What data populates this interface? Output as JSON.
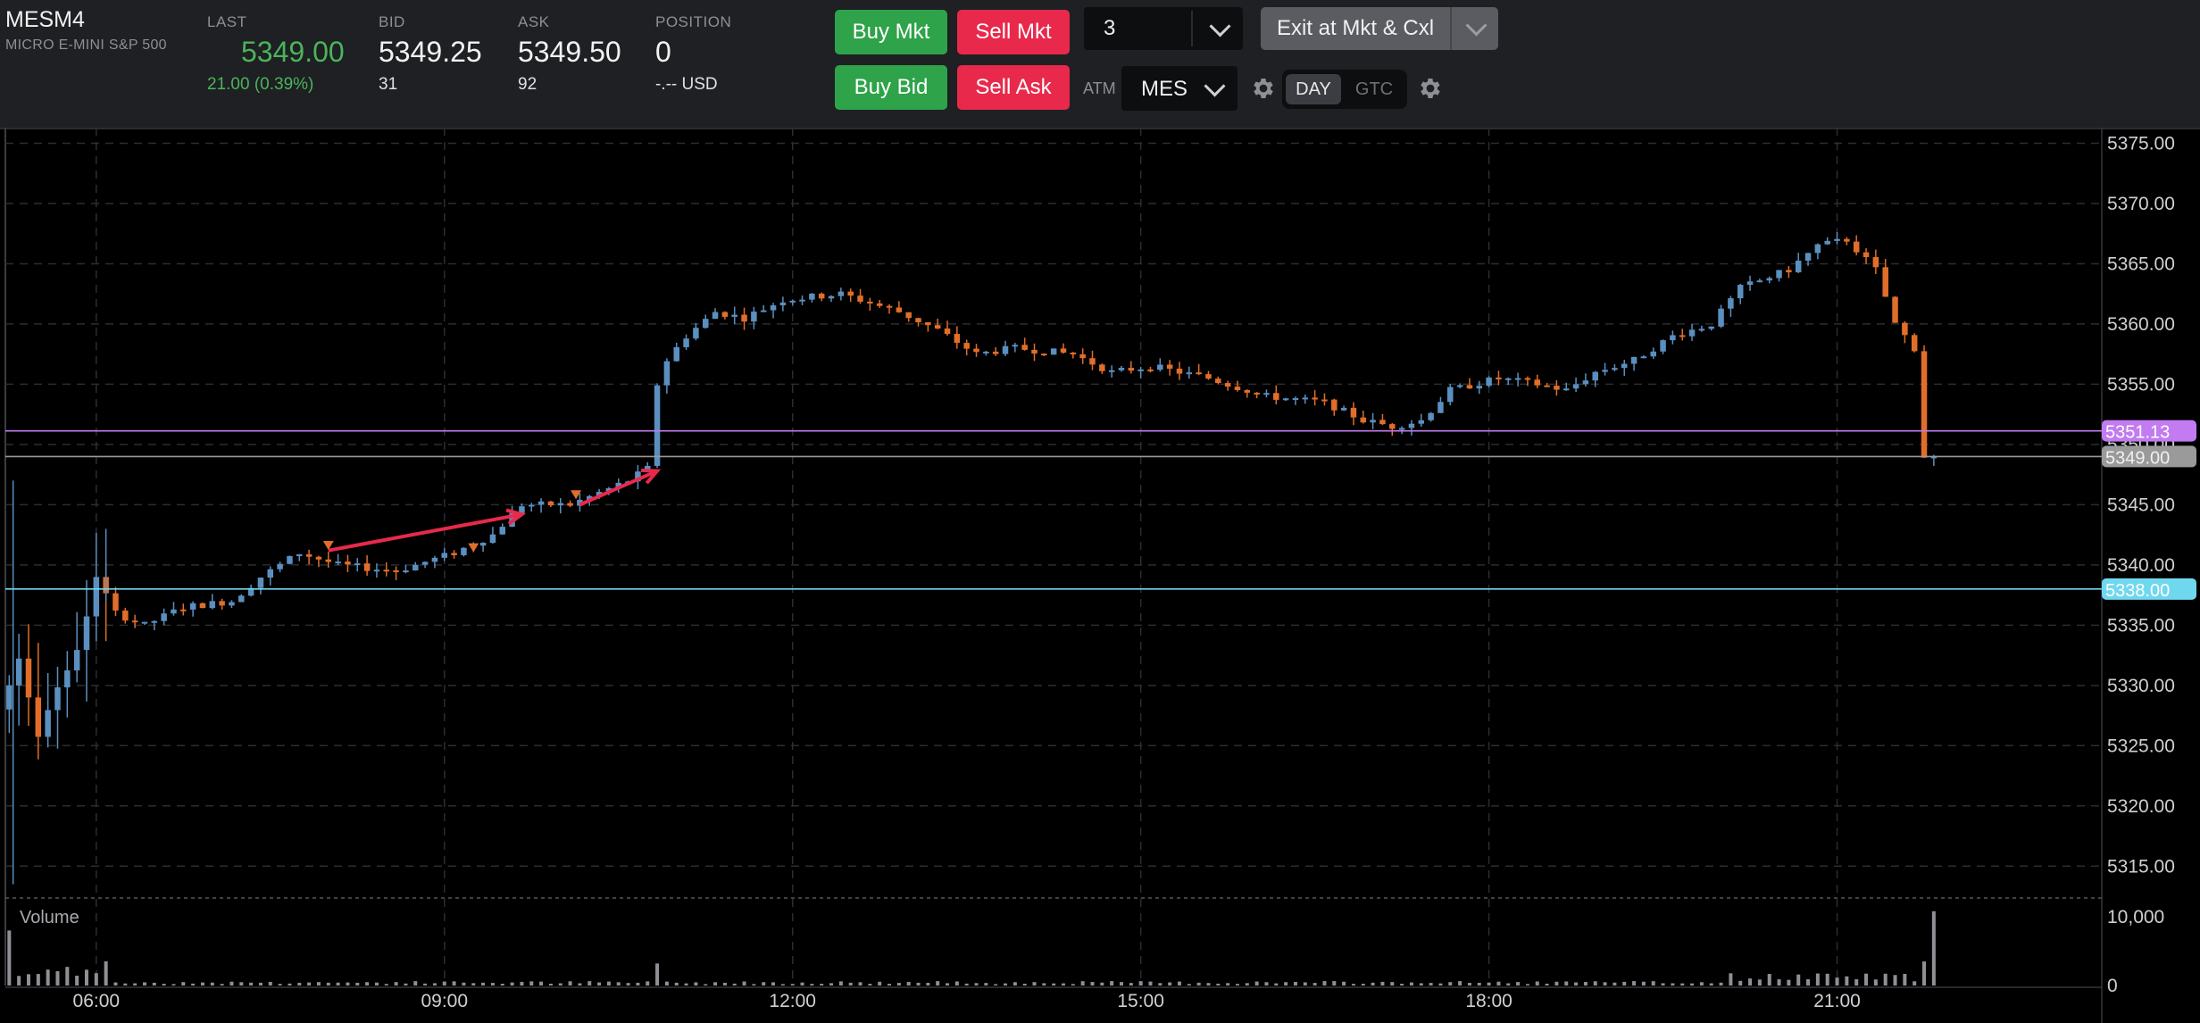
{
  "instrument": {
    "symbol": "MESM4",
    "description": "MICRO E-MINI S&P 500"
  },
  "quote": {
    "last_label": "LAST",
    "last_value": "5349.00",
    "change": "21.00 (0.39%)",
    "bid_label": "BID",
    "bid_value": "5349.25",
    "bid_size": "31",
    "ask_label": "ASK",
    "ask_value": "5349.50",
    "ask_size": "92",
    "position_label": "POSITION",
    "position_value": "0",
    "pnl": "-.-- USD"
  },
  "orders": {
    "buy_mkt": "Buy Mkt",
    "sell_mkt": "Sell Mkt",
    "buy_bid": "Buy Bid",
    "sell_ask": "Sell Ask",
    "quantity": "3",
    "exit": "Exit at Mkt & Cxl",
    "atm_label": "ATM",
    "atm_value": "MES",
    "tif_day": "DAY",
    "tif_gtc": "GTC",
    "tif_selected": "DAY"
  },
  "colors": {
    "up": "#5b8fbf",
    "down": "#e06e2a",
    "last_line": "#9a9a9a",
    "purple_line": "#c27bf0",
    "cyan_line": "#6fd8ee",
    "arrow": "#e8294b"
  },
  "chart_data": {
    "type": "candlestick",
    "price_axis": {
      "ticks": [
        "5375.00",
        "5370.00",
        "5365.00",
        "5360.00",
        "5355.00",
        "5350.00",
        "5345.00",
        "5340.00",
        "5335.00",
        "5330.00",
        "5325.00",
        "5320.00",
        "5315.00"
      ],
      "range": [
        5312.5,
        5376
      ]
    },
    "time_axis": {
      "ticks": [
        "06:00",
        "09:00",
        "12:00",
        "15:00",
        "18:00",
        "21:00"
      ],
      "start": "05:13",
      "end": "23:15"
    },
    "price_lines": [
      {
        "value": 5351.13,
        "label": "5351.13",
        "kind": "purple"
      },
      {
        "value": 5349.0,
        "label": "5349.00",
        "kind": "last"
      },
      {
        "value": 5338.0,
        "label": "5338.00",
        "kind": "cyan"
      }
    ],
    "drawings": [
      {
        "type": "arrow",
        "from": [
          "08:00",
          5341.2
        ],
        "to": [
          "09:40",
          5344.2
        ]
      },
      {
        "type": "arrow",
        "from": [
          "10:10",
          5345.0
        ],
        "to": [
          "10:50",
          5347.8
        ]
      }
    ],
    "markers": [
      {
        "time": "08:00",
        "price": 5341.4,
        "direction": "down"
      },
      {
        "time": "09:15",
        "price": 5341.2,
        "direction": "down"
      },
      {
        "time": "10:08",
        "price": 5345.6,
        "direction": "down"
      }
    ],
    "path_keypoints": [
      [
        "05:15",
        5328
      ],
      [
        "05:25",
        5332
      ],
      [
        "05:35",
        5326
      ],
      [
        "05:45",
        5330
      ],
      [
        "05:55",
        5333
      ],
      [
        "06:05",
        5339
      ],
      [
        "06:15",
        5336
      ],
      [
        "06:30",
        5335
      ],
      [
        "06:50",
        5336.5
      ],
      [
        "07:15",
        5337
      ],
      [
        "07:30",
        5339
      ],
      [
        "07:50",
        5341
      ],
      [
        "08:10",
        5340
      ],
      [
        "08:40",
        5339.5
      ],
      [
        "09:10",
        5341
      ],
      [
        "09:30",
        5342.5
      ],
      [
        "09:45",
        5345
      ],
      [
        "10:10",
        5345
      ],
      [
        "10:40",
        5347
      ],
      [
        "10:50",
        5348
      ],
      [
        "10:55",
        5355
      ],
      [
        "11:00",
        5357
      ],
      [
        "11:10",
        5359
      ],
      [
        "11:25",
        5361
      ],
      [
        "11:40",
        5360.5
      ],
      [
        "12:00",
        5362
      ],
      [
        "12:30",
        5362.5
      ],
      [
        "13:00",
        5361
      ],
      [
        "13:20",
        5359.5
      ],
      [
        "13:40",
        5357.5
      ],
      [
        "14:00",
        5358
      ],
      [
        "14:30",
        5357.5
      ],
      [
        "14:50",
        5356
      ],
      [
        "15:10",
        5356.5
      ],
      [
        "15:40",
        5355.5
      ],
      [
        "16:10",
        5354
      ],
      [
        "16:40",
        5353.5
      ],
      [
        "17:00",
        5352
      ],
      [
        "17:15",
        5351.5
      ],
      [
        "17:30",
        5352
      ],
      [
        "17:45",
        5354.5
      ],
      [
        "18:10",
        5355.5
      ],
      [
        "18:30",
        5355
      ],
      [
        "18:45",
        5354.5
      ],
      [
        "19:00",
        5356
      ],
      [
        "19:20",
        5357
      ],
      [
        "19:40",
        5359
      ],
      [
        "20:00",
        5360
      ],
      [
        "20:15",
        5363
      ],
      [
        "20:40",
        5364.5
      ],
      [
        "20:55",
        5366.5
      ],
      [
        "21:10",
        5367
      ],
      [
        "21:25",
        5364.5
      ],
      [
        "21:35",
        5360
      ],
      [
        "21:45",
        5358
      ],
      [
        "21:50",
        5349
      ]
    ]
  },
  "volume": {
    "label": "Volume",
    "axis_ticks": [
      "10,000",
      "0"
    ],
    "range": [
      0,
      12200
    ],
    "spikes": [
      {
        "time": "05:17",
        "value": 8000
      },
      {
        "time": "10:50",
        "value": 3200
      },
      {
        "time": "21:50",
        "value": 10800
      },
      {
        "time": "21:45",
        "value": 3500
      }
    ]
  }
}
